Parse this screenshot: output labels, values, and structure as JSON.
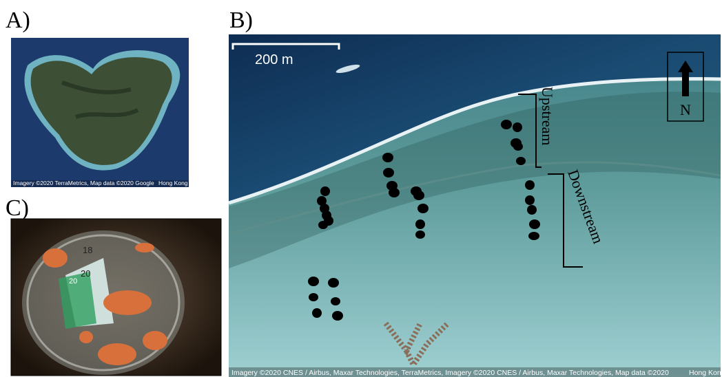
{
  "panels": [
    {
      "label": "A)",
      "attribution": "Imagery ©2020 TerraMetrics, Map data ©2020 Google",
      "region": "Hong Kong"
    },
    {
      "label": "B)",
      "scale": "200 m",
      "north": "N",
      "upstream": "Upstream",
      "downstream": "Downstream",
      "attribution": "Imagery ©2020 CNES / Airbus, Maxar Technologies, TerraMetrics, Imagery ©2020 CNES / Airbus, Maxar Technologies, Map data ©2020",
      "region": "Hong Kong"
    },
    {
      "label": "C)",
      "ruler": [
        "18",
        "20",
        "20"
      ]
    }
  ]
}
